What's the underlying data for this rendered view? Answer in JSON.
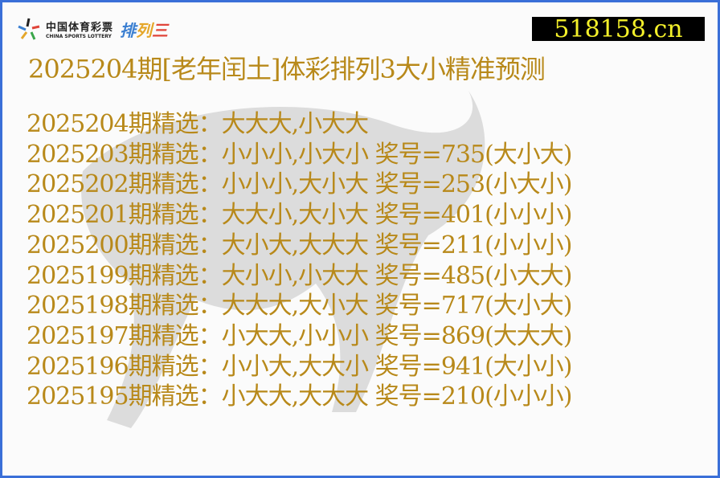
{
  "logo": {
    "cn": "中国体育彩票",
    "en": "CHINA SPORTS LOTTERY",
    "game": [
      "排",
      "列",
      "三"
    ]
  },
  "site": "518158.cn",
  "title": "2025204期[老年闰土]体彩排列3大小精准预测",
  "rows": [
    {
      "text": "2025204期精选：大大大,小大大"
    },
    {
      "text": "2025203期精选：小小小,小大小 奖号=735(大小大)"
    },
    {
      "text": "2025202期精选：小小小,大小大 奖号=253(小大小)"
    },
    {
      "text": "2025201期精选：大大小,大小大 奖号=401(小小小)"
    },
    {
      "text": "2025200期精选：大小大,大大大 奖号=211(小小小)"
    },
    {
      "text": "2025199期精选：大小小,小大大 奖号=485(小大大)"
    },
    {
      "text": "2025198期精选：大大大,大小大 奖号=717(大小大)"
    },
    {
      "text": "2025197期精选：小大大,小小小 奖号=869(大大大)"
    },
    {
      "text": "2025196期精选：小小大,大大小 奖号=941(大小小)"
    },
    {
      "text": "2025195期精选：小大大,大大大 奖号=210(小小小)"
    }
  ],
  "colors": {
    "text": "#b8891a",
    "border": "#3a6fd8",
    "site_bg": "#000000",
    "site_text": "#f4f02a"
  }
}
